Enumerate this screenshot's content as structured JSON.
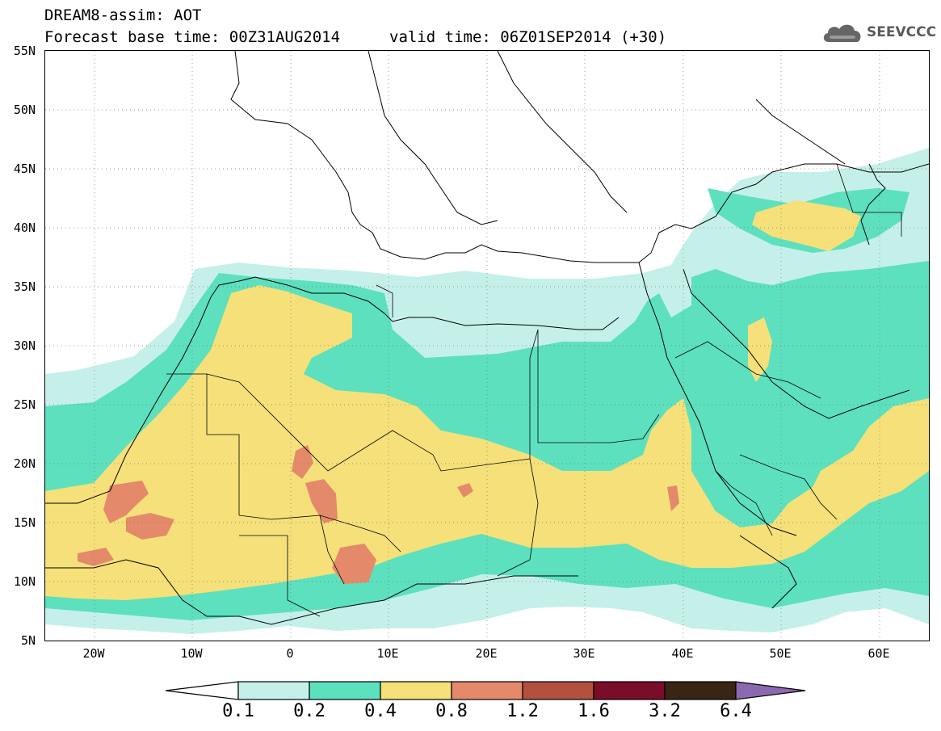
{
  "header": {
    "line1": "DREAM8-assim: AOT",
    "line2": "Forecast base time: 00Z31AUG2014",
    "valid": "valid time: 06Z01SEP2014 (+30)"
  },
  "logo": {
    "text": "SEEVCCC",
    "icon": "cloud-icon"
  },
  "axes": {
    "lat_labels": [
      "55N",
      "50N",
      "45N",
      "40N",
      "35N",
      "30N",
      "25N",
      "20N",
      "15N",
      "10N",
      "5N"
    ],
    "lon_labels": [
      "20W",
      "10W",
      "0",
      "10E",
      "20E",
      "30E",
      "40E",
      "50E",
      "60E"
    ],
    "lat_range": [
      5,
      55
    ],
    "lon_range": [
      -25,
      65
    ]
  },
  "colorbar": {
    "labels": [
      "0.1",
      "0.2",
      "0.4",
      "0.8",
      "1.2",
      "1.6",
      "3.2",
      "6.4"
    ],
    "colors": [
      "#c5f0ea",
      "#5de0bd",
      "#f5e07a",
      "#e48a6a",
      "#b4503e",
      "#7a0e2a",
      "#3a2414",
      "#8c68b0"
    ]
  }
}
